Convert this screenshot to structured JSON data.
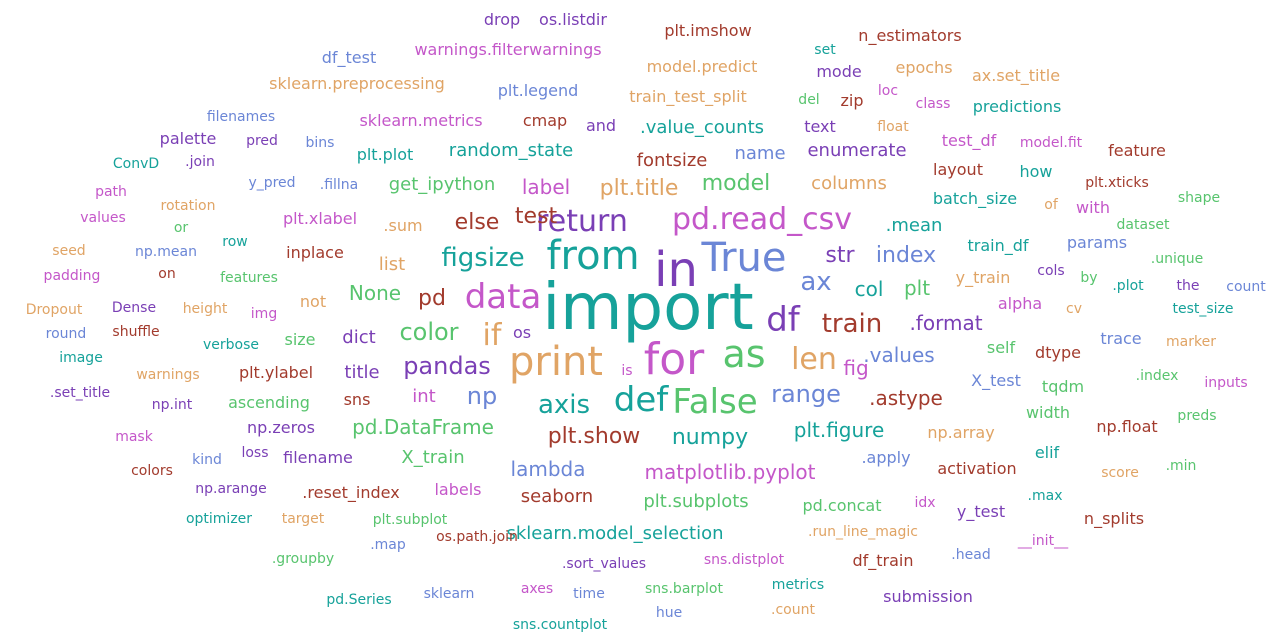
{
  "palette": {
    "teal": "#16a29a",
    "purple": "#7a3fb5",
    "blue": "#6b86d6",
    "orange": "#e0a465",
    "green": "#58c46e",
    "magenta": "#c457c9",
    "rust": "#a23b2d"
  },
  "words": [
    {
      "text": "import",
      "color": "teal"
    },
    {
      "text": "in",
      "color": "purple"
    },
    {
      "text": "from",
      "color": "teal"
    },
    {
      "text": "True",
      "color": "blue"
    },
    {
      "text": "print",
      "color": "orange"
    },
    {
      "text": "for",
      "color": "magenta"
    },
    {
      "text": "as",
      "color": "green"
    },
    {
      "text": "data",
      "color": "magenta"
    },
    {
      "text": "df",
      "color": "purple"
    },
    {
      "text": "def",
      "color": "teal"
    },
    {
      "text": "False",
      "color": "green"
    },
    {
      "text": "return",
      "color": "purple"
    },
    {
      "text": "pd.read_csv",
      "color": "magenta"
    },
    {
      "text": "if",
      "color": "orange"
    },
    {
      "text": "len",
      "color": "orange"
    },
    {
      "text": "axis",
      "color": "teal"
    },
    {
      "text": "figsize",
      "color": "teal"
    },
    {
      "text": "train",
      "color": "rust"
    },
    {
      "text": "ax",
      "color": "blue"
    },
    {
      "text": "pandas",
      "color": "purple"
    },
    {
      "text": "np",
      "color": "blue"
    },
    {
      "text": "color",
      "color": "green"
    },
    {
      "text": "range",
      "color": "blue"
    },
    {
      "text": "plt.show",
      "color": "rust"
    },
    {
      "text": "numpy",
      "color": "teal"
    },
    {
      "text": "pd",
      "color": "rust"
    },
    {
      "text": "test",
      "color": "rust"
    },
    {
      "text": "else",
      "color": "rust"
    },
    {
      "text": "str",
      "color": "purple"
    },
    {
      "text": "index",
      "color": "blue"
    },
    {
      "text": "model",
      "color": "green"
    },
    {
      "text": "plt.title",
      "color": "orange"
    },
    {
      "text": "label",
      "color": "magenta"
    },
    {
      "text": "None",
      "color": "green"
    },
    {
      "text": "col",
      "color": "teal"
    },
    {
      "text": "plt",
      "color": "green"
    },
    {
      "text": "fig",
      "color": "magenta"
    },
    {
      "text": "pd.DataFrame",
      "color": "green"
    },
    {
      "text": "lambda",
      "color": "blue"
    },
    {
      "text": "matplotlib.pyplot",
      "color": "magenta"
    },
    {
      "text": "plt.figure",
      "color": "teal"
    },
    {
      "text": ".values",
      "color": "blue"
    },
    {
      "text": ".astype",
      "color": "rust"
    },
    {
      "text": ".format",
      "color": "purple"
    },
    {
      "text": "random_state",
      "color": "teal"
    },
    {
      "text": "fontsize",
      "color": "rust"
    },
    {
      "text": "get_ipython",
      "color": "green"
    },
    {
      "text": "columns",
      "color": "orange"
    },
    {
      "text": "enumerate",
      "color": "purple"
    },
    {
      "text": ".mean",
      "color": "teal"
    },
    {
      "text": "list",
      "color": "orange"
    },
    {
      "text": "dict",
      "color": "purple"
    },
    {
      "text": "int",
      "color": "magenta"
    },
    {
      "text": "title",
      "color": "purple"
    },
    {
      "text": "seaborn",
      "color": "rust"
    },
    {
      "text": "plt.subplots",
      "color": "green"
    },
    {
      "text": "X_train",
      "color": "green"
    },
    {
      "text": "sklearn.model_selection",
      "color": "teal"
    },
    {
      "text": ".value_counts",
      "color": "teal"
    },
    {
      "text": "name",
      "color": "blue"
    },
    {
      "text": "plt.plot",
      "color": "teal"
    },
    {
      "text": "and",
      "color": "purple"
    },
    {
      "text": "text",
      "color": "purple"
    },
    {
      "text": ".sum",
      "color": "orange"
    },
    {
      "text": "os",
      "color": "purple"
    },
    {
      "text": "inplace",
      "color": "rust"
    },
    {
      "text": "sns",
      "color": "rust"
    },
    {
      "text": "size",
      "color": "green"
    },
    {
      "text": "not",
      "color": "orange"
    },
    {
      "text": "plt.xlabel",
      "color": "magenta"
    },
    {
      "text": "plt.ylabel",
      "color": "rust"
    },
    {
      "text": "ascending",
      "color": "green"
    },
    {
      "text": "np.zeros",
      "color": "purple"
    },
    {
      "text": "filename",
      "color": "purple"
    },
    {
      "text": "labels",
      "color": "magenta"
    },
    {
      "text": ".reset_index",
      "color": "rust"
    },
    {
      "text": "pd.concat",
      "color": "green"
    },
    {
      "text": ".apply",
      "color": "blue"
    },
    {
      "text": "activation",
      "color": "rust"
    },
    {
      "text": "np.array",
      "color": "orange"
    },
    {
      "text": "train_df",
      "color": "teal"
    },
    {
      "text": "y_train",
      "color": "orange"
    },
    {
      "text": "batch_size",
      "color": "teal"
    },
    {
      "text": "X_test",
      "color": "blue"
    },
    {
      "text": "alpha",
      "color": "magenta"
    },
    {
      "text": "self",
      "color": "green"
    },
    {
      "text": "dtype",
      "color": "rust"
    },
    {
      "text": "y_test",
      "color": "purple"
    },
    {
      "text": "n_splits",
      "color": "rust"
    },
    {
      "text": "width",
      "color": "green"
    },
    {
      "text": "elif",
      "color": "teal"
    },
    {
      "text": "tqdm",
      "color": "green"
    },
    {
      "text": "np.float",
      "color": "rust"
    },
    {
      "text": "sklearn.preprocessing",
      "color": "orange"
    },
    {
      "text": "warnings.filterwarnings",
      "color": "magenta"
    },
    {
      "text": "plt.legend",
      "color": "blue"
    },
    {
      "text": "train_test_split",
      "color": "orange"
    },
    {
      "text": "model.predict",
      "color": "orange"
    },
    {
      "text": "sklearn.metrics",
      "color": "magenta"
    },
    {
      "text": "cmap",
      "color": "rust"
    },
    {
      "text": "plt.imshow",
      "color": "rust"
    },
    {
      "text": "n_estimators",
      "color": "rust"
    },
    {
      "text": "os.listdir",
      "color": "purple"
    },
    {
      "text": "drop",
      "color": "purple"
    },
    {
      "text": "df_test",
      "color": "blue"
    },
    {
      "text": "set",
      "color": "teal"
    },
    {
      "text": "mode",
      "color": "purple"
    },
    {
      "text": "epochs",
      "color": "orange"
    },
    {
      "text": "ax.set_title",
      "color": "orange"
    },
    {
      "text": "loc",
      "color": "magenta"
    },
    {
      "text": "class",
      "color": "magenta"
    },
    {
      "text": "predictions",
      "color": "teal"
    },
    {
      "text": "del",
      "color": "green"
    },
    {
      "text": "zip",
      "color": "rust"
    },
    {
      "text": "float",
      "color": "orange"
    },
    {
      "text": "test_df",
      "color": "magenta"
    },
    {
      "text": "model.fit",
      "color": "magenta"
    },
    {
      "text": "feature",
      "color": "rust"
    },
    {
      "text": "layout",
      "color": "rust"
    },
    {
      "text": "how",
      "color": "teal"
    },
    {
      "text": "plt.xticks",
      "color": "rust"
    },
    {
      "text": "shape",
      "color": "green"
    },
    {
      "text": "of",
      "color": "orange"
    },
    {
      "text": "with",
      "color": "magenta"
    },
    {
      "text": "dataset",
      "color": "green"
    },
    {
      "text": "params",
      "color": "blue"
    },
    {
      "text": ".unique",
      "color": "green"
    },
    {
      "text": "cols",
      "color": "purple"
    },
    {
      "text": "by",
      "color": "green"
    },
    {
      "text": "the",
      "color": "purple"
    },
    {
      "text": "count",
      "color": "blue"
    },
    {
      "text": ".plot",
      "color": "teal"
    },
    {
      "text": "cv",
      "color": "orange"
    },
    {
      "text": "test_size",
      "color": "teal"
    },
    {
      "text": "trace",
      "color": "blue"
    },
    {
      "text": "marker",
      "color": "orange"
    },
    {
      "text": ".index",
      "color": "green"
    },
    {
      "text": "inputs",
      "color": "magenta"
    },
    {
      "text": "preds",
      "color": "green"
    },
    {
      "text": "score",
      "color": "orange"
    },
    {
      "text": ".min",
      "color": "green"
    },
    {
      "text": ".max",
      "color": "teal"
    },
    {
      "text": "idx",
      "color": "magenta"
    },
    {
      "text": "__init__",
      "color": "magenta"
    },
    {
      "text": ".head",
      "color": "blue"
    },
    {
      "text": "df_train",
      "color": "rust"
    },
    {
      "text": "submission",
      "color": "purple"
    },
    {
      "text": "filenames",
      "color": "blue"
    },
    {
      "text": "palette",
      "color": "purple"
    },
    {
      "text": "pred",
      "color": "purple"
    },
    {
      "text": "bins",
      "color": "blue"
    },
    {
      "text": "ConvD",
      "color": "teal"
    },
    {
      "text": ".join",
      "color": "purple"
    },
    {
      "text": "y_pred",
      "color": "blue"
    },
    {
      "text": ".fillna",
      "color": "blue"
    },
    {
      "text": "path",
      "color": "magenta"
    },
    {
      "text": "values",
      "color": "magenta"
    },
    {
      "text": "rotation",
      "color": "orange"
    },
    {
      "text": "or",
      "color": "green"
    },
    {
      "text": "seed",
      "color": "orange"
    },
    {
      "text": "np.mean",
      "color": "blue"
    },
    {
      "text": "row",
      "color": "teal"
    },
    {
      "text": "padding",
      "color": "magenta"
    },
    {
      "text": "on",
      "color": "rust"
    },
    {
      "text": "features",
      "color": "green"
    },
    {
      "text": "Dropout",
      "color": "orange"
    },
    {
      "text": "Dense",
      "color": "purple"
    },
    {
      "text": "height",
      "color": "orange"
    },
    {
      "text": "img",
      "color": "magenta"
    },
    {
      "text": "round",
      "color": "blue"
    },
    {
      "text": "shuffle",
      "color": "rust"
    },
    {
      "text": "image",
      "color": "teal"
    },
    {
      "text": "verbose",
      "color": "teal"
    },
    {
      "text": "warnings",
      "color": "orange"
    },
    {
      "text": "is",
      "color": "magenta"
    },
    {
      "text": ".set_title",
      "color": "purple"
    },
    {
      "text": "np.int",
      "color": "purple"
    },
    {
      "text": "mask",
      "color": "magenta"
    },
    {
      "text": "kind",
      "color": "blue"
    },
    {
      "text": "loss",
      "color": "purple"
    },
    {
      "text": "colors",
      "color": "rust"
    },
    {
      "text": "np.arange",
      "color": "purple"
    },
    {
      "text": "optimizer",
      "color": "teal"
    },
    {
      "text": "target",
      "color": "orange"
    },
    {
      "text": "plt.subplot",
      "color": "green"
    },
    {
      "text": ".run_line_magic",
      "color": "orange"
    },
    {
      "text": ".map",
      "color": "blue"
    },
    {
      "text": ".groupby",
      "color": "green"
    },
    {
      "text": "os.path.join",
      "color": "rust"
    },
    {
      "text": ".sort_values",
      "color": "purple"
    },
    {
      "text": "sns.distplot",
      "color": "magenta"
    },
    {
      "text": "pd.Series",
      "color": "teal"
    },
    {
      "text": "sklearn",
      "color": "blue"
    },
    {
      "text": "axes",
      "color": "magenta"
    },
    {
      "text": "time",
      "color": "blue"
    },
    {
      "text": "sns.barplot",
      "color": "green"
    },
    {
      "text": "metrics",
      "color": "teal"
    },
    {
      "text": ".count",
      "color": "orange"
    },
    {
      "text": "hue",
      "color": "blue"
    },
    {
      "text": "sns.countplot",
      "color": "teal"
    }
  ]
}
